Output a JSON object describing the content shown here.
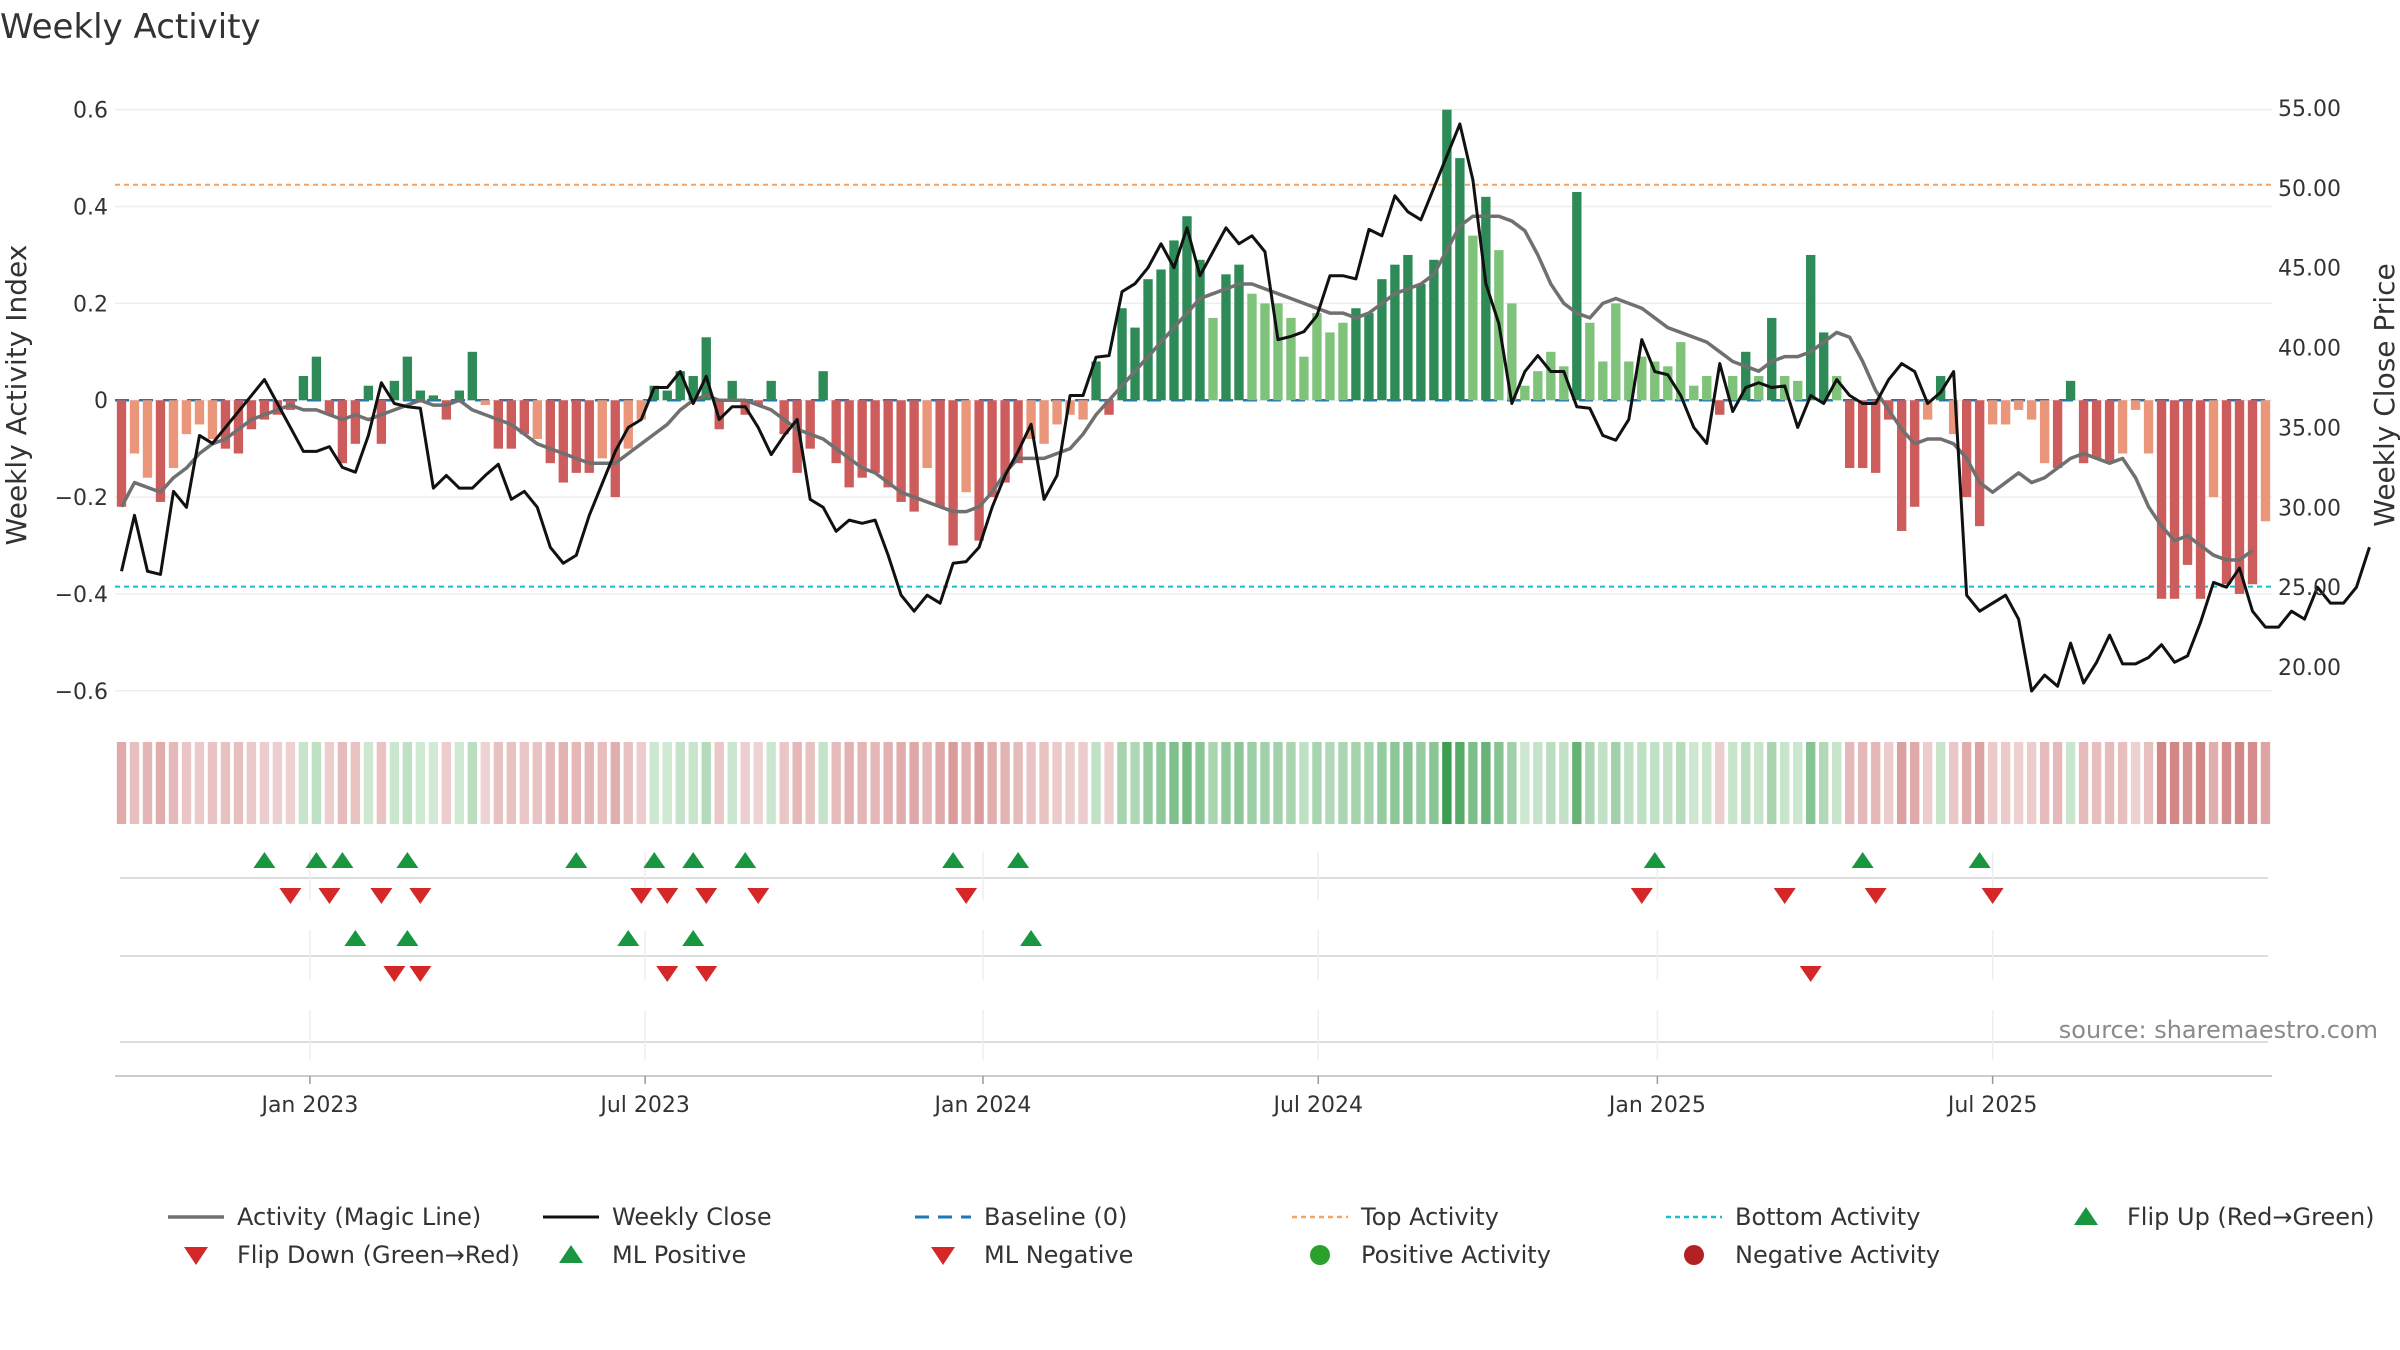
{
  "chart_data": {
    "type": "bar",
    "title": "Weekly Activity",
    "ylabel_left": "Weekly Activity Index",
    "ylabel_right": "Weekly Close Price",
    "source": "source: sharemaestro.com",
    "left_ylim": [
      -0.65,
      0.62
    ],
    "right_ylim": [
      17.0,
      55.5
    ],
    "left_ticks": [
      "0.6",
      "0.4",
      "0.2",
      "0",
      "−0.2",
      "−0.4",
      "−0.6"
    ],
    "left_tick_values": [
      0.6,
      0.4,
      0.2,
      0,
      -0.2,
      -0.4,
      -0.6
    ],
    "right_ticks": [
      "55.00",
      "50.00",
      "45.00",
      "40.00",
      "35.00",
      "30.00",
      "25.00",
      "20.00"
    ],
    "right_tick_values": [
      55,
      50,
      45,
      40,
      35,
      30,
      25,
      20
    ],
    "x_ticks": [
      "Jan 2023",
      "Jul 2023",
      "Jan 2024",
      "Jul 2024",
      "Jan 2025",
      "Jul 2025"
    ],
    "x_tick_weeks": [
      14.5,
      40.3,
      66.3,
      92.1,
      118.2,
      144.0
    ],
    "top_activity": 0.445,
    "bottom_activity": -0.385,
    "activity": [
      -0.22,
      -0.11,
      -0.16,
      -0.21,
      -0.14,
      -0.07,
      -0.05,
      -0.08,
      -0.1,
      -0.11,
      -0.06,
      -0.04,
      -0.03,
      -0.02,
      0.05,
      0.09,
      -0.03,
      -0.13,
      -0.09,
      0.03,
      -0.09,
      0.04,
      0.09,
      0.02,
      0.01,
      -0.04,
      0.02,
      0.1,
      -0.01,
      -0.1,
      -0.1,
      -0.07,
      -0.08,
      -0.13,
      -0.17,
      -0.15,
      -0.15,
      -0.12,
      -0.2,
      -0.1,
      -0.04,
      0.03,
      0.02,
      0.06,
      0.05,
      0.13,
      -0.06,
      0.04,
      -0.03,
      -0.01,
      0.04,
      -0.07,
      -0.15,
      -0.1,
      0.06,
      -0.13,
      -0.18,
      -0.16,
      -0.15,
      -0.18,
      -0.21,
      -0.23,
      -0.14,
      -0.22,
      -0.3,
      -0.19,
      -0.29,
      -0.2,
      -0.17,
      -0.13,
      -0.08,
      -0.09,
      -0.05,
      -0.03,
      -0.04,
      0.08,
      -0.03,
      0.19,
      0.15,
      0.25,
      0.27,
      0.33,
      0.38,
      0.29,
      0.17,
      0.26,
      0.28,
      0.22,
      0.2,
      0.2,
      0.17,
      0.09,
      0.18,
      0.14,
      0.16,
      0.19,
      0.18,
      0.25,
      0.28,
      0.3,
      0.24,
      0.29,
      0.6,
      0.5,
      0.34,
      0.42,
      0.31,
      0.2,
      0.03,
      0.06,
      0.1,
      0.07,
      0.43,
      0.16,
      0.08,
      0.2,
      0.08,
      0.09,
      0.08,
      0.07,
      0.12,
      0.03,
      0.05,
      -0.03,
      0.05,
      0.1,
      0.05,
      0.17,
      0.05,
      0.04,
      0.3,
      0.14,
      0.05,
      -0.14,
      -0.14,
      -0.15,
      -0.04,
      -0.27,
      -0.22,
      -0.04,
      0.05,
      -0.07,
      -0.2,
      -0.26,
      -0.05,
      -0.05,
      -0.02,
      -0.04,
      -0.13,
      -0.14,
      0.04,
      -0.13,
      -0.12,
      -0.13,
      -0.11,
      -0.02,
      -0.11,
      -0.41,
      -0.41,
      -0.34,
      -0.41,
      -0.2,
      -0.38,
      -0.4,
      -0.38,
      -0.25
    ],
    "magic_line": [
      -0.22,
      -0.17,
      -0.18,
      -0.19,
      -0.16,
      -0.14,
      -0.11,
      -0.09,
      -0.08,
      -0.06,
      -0.04,
      -0.03,
      -0.02,
      -0.01,
      -0.02,
      -0.02,
      -0.03,
      -0.04,
      -0.03,
      -0.04,
      -0.03,
      -0.02,
      -0.01,
      0.0,
      -0.01,
      -0.01,
      0.0,
      -0.02,
      -0.03,
      -0.04,
      -0.05,
      -0.07,
      -0.09,
      -0.1,
      -0.11,
      -0.12,
      -0.13,
      -0.13,
      -0.13,
      -0.11,
      -0.09,
      -0.07,
      -0.05,
      -0.02,
      0.0,
      0.01,
      0.0,
      0.0,
      0.0,
      -0.01,
      -0.02,
      -0.04,
      -0.06,
      -0.07,
      -0.08,
      -0.1,
      -0.12,
      -0.14,
      -0.15,
      -0.17,
      -0.19,
      -0.2,
      -0.21,
      -0.22,
      -0.23,
      -0.23,
      -0.22,
      -0.19,
      -0.15,
      -0.12,
      -0.12,
      -0.12,
      -0.11,
      -0.1,
      -0.07,
      -0.03,
      0.0,
      0.03,
      0.06,
      0.09,
      0.12,
      0.15,
      0.18,
      0.21,
      0.22,
      0.23,
      0.24,
      0.24,
      0.23,
      0.22,
      0.21,
      0.2,
      0.19,
      0.18,
      0.18,
      0.17,
      0.18,
      0.2,
      0.22,
      0.23,
      0.24,
      0.26,
      0.31,
      0.36,
      0.38,
      0.38,
      0.38,
      0.37,
      0.35,
      0.3,
      0.24,
      0.2,
      0.18,
      0.17,
      0.2,
      0.21,
      0.2,
      0.19,
      0.17,
      0.15,
      0.14,
      0.13,
      0.12,
      0.1,
      0.08,
      0.07,
      0.06,
      0.08,
      0.09,
      0.09,
      0.1,
      0.12,
      0.14,
      0.13,
      0.08,
      0.02,
      -0.02,
      -0.06,
      -0.09,
      -0.08,
      -0.08,
      -0.09,
      -0.12,
      -0.17,
      -0.19,
      -0.17,
      -0.15,
      -0.17,
      -0.16,
      -0.14,
      -0.12,
      -0.11,
      -0.12,
      -0.13,
      -0.12,
      -0.16,
      -0.22,
      -0.26,
      -0.29,
      -0.28,
      -0.3,
      -0.32,
      -0.33,
      -0.33,
      -0.31
    ],
    "weekly_close": [
      26,
      29.5,
      26,
      25.8,
      31,
      30,
      34.5,
      34,
      35,
      36,
      37,
      38,
      36.5,
      35,
      33.5,
      33.5,
      33.8,
      32.5,
      32.2,
      34.5,
      37.8,
      36.5,
      36.3,
      36.2,
      31.2,
      32,
      31.2,
      31.2,
      32,
      32.7,
      30.5,
      31,
      30,
      27.5,
      26.5,
      27,
      29.5,
      31.5,
      33.5,
      35,
      35.5,
      37.5,
      37.5,
      38.5,
      36.5,
      38.2,
      35.5,
      36.3,
      36.3,
      35,
      33.3,
      34.5,
      35.5,
      30.5,
      30,
      28.5,
      29.2,
      29,
      29.2,
      27,
      24.5,
      23.5,
      24.5,
      24,
      26.5,
      26.6,
      27.5,
      30,
      32,
      33.5,
      35.2,
      30.5,
      32,
      37,
      37,
      39.4,
      39.5,
      43.5,
      44,
      45,
      46.5,
      45,
      47.5,
      44.5,
      46,
      47.5,
      46.5,
      47,
      46,
      40.5,
      40.7,
      41,
      42,
      44.5,
      44.5,
      44.3,
      47.4,
      47,
      49.5,
      48.5,
      48,
      50,
      52,
      54,
      50.5,
      44,
      41.5,
      36.5,
      38.5,
      39.5,
      38.5,
      38.5,
      36.3,
      36.2,
      34.5,
      34.2,
      35.5,
      40.5,
      38.5,
      38.3,
      37,
      35,
      34,
      39,
      36,
      37.5,
      37.8,
      37.5,
      37.6,
      35,
      37,
      36.5,
      38,
      37,
      36.5,
      36.5,
      38,
      39,
      38.5,
      36.5,
      37.2,
      38.5,
      24.5,
      23.5,
      24,
      24.5,
      23,
      18.5,
      19.5,
      18.8,
      21.5,
      19,
      20.3,
      22,
      20.2,
      20.2,
      20.6,
      21.4,
      20.3,
      20.7,
      22.8,
      25.3,
      25,
      26.2,
      23.5,
      22.5,
      22.5,
      23.5,
      23,
      25,
      24,
      24,
      25,
      27.5
    ],
    "flip_up_row1": [
      11,
      15,
      17,
      22,
      35,
      41,
      44,
      48,
      64,
      69,
      118,
      134,
      143
    ],
    "flip_down_row1": [
      13,
      16,
      20,
      23,
      40,
      42,
      45,
      49,
      65,
      117,
      128,
      135,
      144
    ],
    "flip_up_row2": [
      18,
      22,
      39,
      44,
      70
    ],
    "flip_down_row2": [
      21,
      23,
      42,
      45,
      130
    ],
    "legend": [
      {
        "key": "magic",
        "label": "Activity (Magic Line)"
      },
      {
        "key": "close",
        "label": "Weekly Close"
      },
      {
        "key": "baseline",
        "label": "Baseline (0)"
      },
      {
        "key": "top",
        "label": "Top Activity"
      },
      {
        "key": "bottom",
        "label": "Bottom Activity"
      },
      {
        "key": "flipup",
        "label": "Flip Up (Red→Green)"
      },
      {
        "key": "flipdown",
        "label": "Flip Down (Green→Red)"
      },
      {
        "key": "mlpos",
        "label": "ML Positive"
      },
      {
        "key": "mlneg",
        "label": "ML Negative"
      },
      {
        "key": "posact",
        "label": "Positive Activity"
      },
      {
        "key": "negact",
        "label": "Negative Activity"
      }
    ]
  },
  "colors": {
    "pos_dark": "#2e8b57",
    "pos_light": "#7fc27a",
    "neg_dark": "#cd5c5c",
    "neg_light": "#e9967a",
    "magic_line": "#707070",
    "close_line": "#111111",
    "baseline": "#1f77b4",
    "top_line": "#f4a460",
    "bottom_line": "#17becf",
    "flip_up": "#1a9641",
    "flip_down": "#d62728",
    "pos_dot": "#2ca02c",
    "neg_dot": "#b22222"
  }
}
